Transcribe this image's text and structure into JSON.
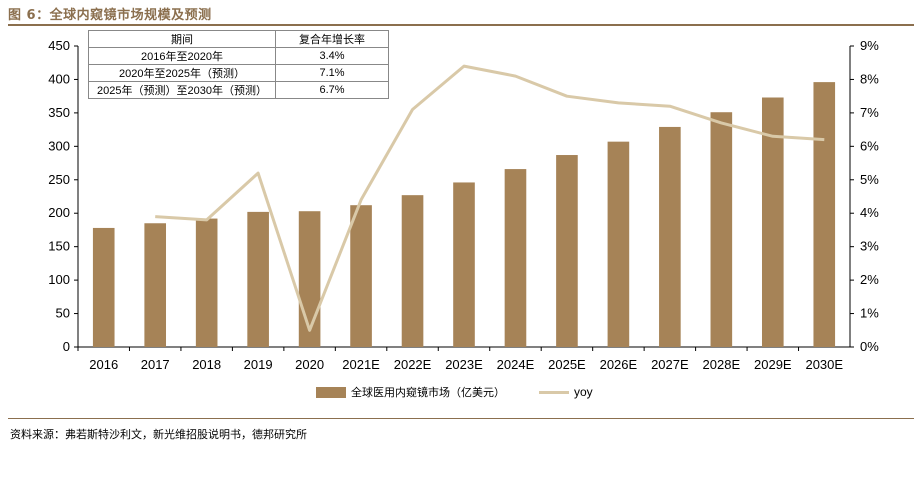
{
  "header": {
    "title": "图 6：全球内窥镜市场规模及预测"
  },
  "footer": {
    "source": "资料来源：弗若斯特沙利文，新光维招股说明书，德邦研究所"
  },
  "colors": {
    "bar": "#a68357",
    "line": "#d9c9a8",
    "accent": "#8b6f4e"
  },
  "cagr_table": {
    "headers": [
      "期间",
      "复合年增长率"
    ],
    "rows": [
      [
        "2016年至2020年",
        "3.4%"
      ],
      [
        "2020年至2025年（预测）",
        "7.1%"
      ],
      [
        "2025年（预测）至2030年（预测）",
        "6.7%"
      ]
    ]
  },
  "chart_data": {
    "type": "bar",
    "categories": [
      "2016",
      "2017",
      "2018",
      "2019",
      "2020",
      "2021E",
      "2022E",
      "2023E",
      "2024E",
      "2025E",
      "2026E",
      "2027E",
      "2028E",
      "2029E",
      "2030E"
    ],
    "series": [
      {
        "name": "全球医用内窥镜市场（亿美元）",
        "type": "bar",
        "axis": "left",
        "values": [
          178,
          185,
          192,
          202,
          203,
          212,
          227,
          246,
          266,
          287,
          307,
          329,
          351,
          373,
          396
        ]
      },
      {
        "name": "yoy",
        "type": "line",
        "axis": "right",
        "values": [
          null,
          3.9,
          3.8,
          5.2,
          0.5,
          4.4,
          7.1,
          8.4,
          8.1,
          7.5,
          7.3,
          7.2,
          6.7,
          6.3,
          6.2
        ]
      }
    ],
    "y_left": {
      "min": 0,
      "max": 450,
      "step": 50
    },
    "y_right": {
      "min": 0,
      "max": 9,
      "step": 1,
      "suffix": "%"
    },
    "legend": {
      "placement": "bottom"
    }
  }
}
